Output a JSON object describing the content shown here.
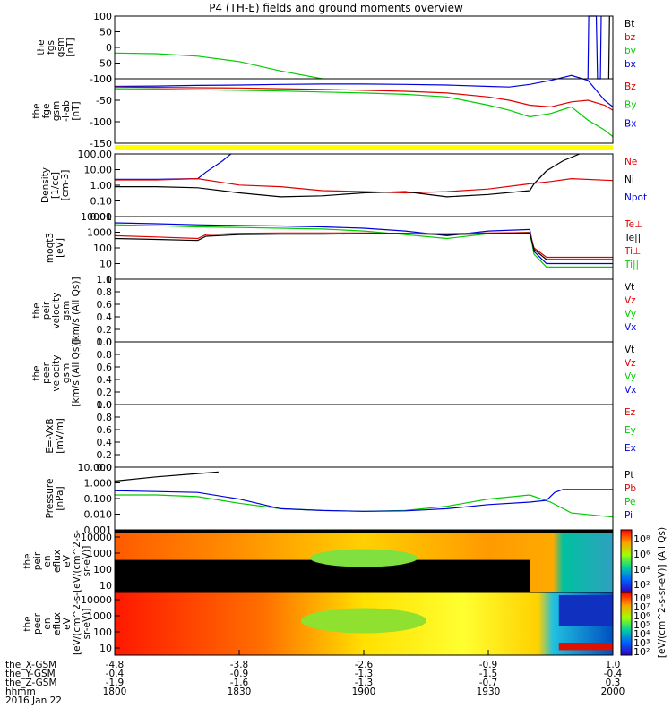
{
  "title": "P4 (TH-E) fields and ground moments overview",
  "colors": {
    "black": "#000000",
    "red": "#e00000",
    "green": "#00cc00",
    "blue": "#0000dd",
    "yellow": "#ffff00"
  },
  "chart_data": {
    "type": "line",
    "x": {
      "unit": "hhmm",
      "ticks": [
        "1800",
        "1830",
        "1900",
        "1930",
        "2000"
      ],
      "range_minutes": [
        0,
        120
      ]
    },
    "panels": [
      {
        "id": "fgs",
        "ylabel": [
          "the",
          "fgs",
          "gsm",
          "[nT]"
        ],
        "yticks": [
          "100",
          "50",
          "0",
          "-50",
          "-100"
        ],
        "ylim": [
          -100,
          100
        ],
        "legend": [
          {
            "text": "Bt",
            "color": "black"
          },
          {
            "text": "bz",
            "color": "red"
          },
          {
            "text": "by",
            "color": "green"
          },
          {
            "text": "bx",
            "color": "blue"
          }
        ],
        "series": [
          {
            "label": "by",
            "color": "green",
            "x": [
              0,
              10,
              20,
              30,
              40,
              50
            ],
            "y": [
              -18,
              -20,
              -28,
              -45,
              -75,
              -100
            ]
          },
          {
            "label": "bx",
            "color": "blue",
            "x": [
              114,
              114.2,
              116,
              116.3,
              117,
              117.2
            ],
            "y": [
              -100,
              100,
              100,
              -100,
              -100,
              100
            ]
          },
          {
            "label": "Bt",
            "color": "black",
            "x": [
              119,
              119.2
            ],
            "y": [
              -100,
              100
            ]
          }
        ]
      },
      {
        "id": "fge",
        "ylabel": [
          "the",
          "fge",
          "gsm",
          "-l-ab",
          "[nT]"
        ],
        "yticks": [
          "0",
          "-50",
          "-100",
          "-150"
        ],
        "ylim": [
          -170,
          25
        ],
        "legend": [
          {
            "text": "Bz",
            "color": "red"
          },
          {
            "text": "By",
            "color": "green"
          },
          {
            "text": "Bx",
            "color": "blue"
          }
        ],
        "series": [
          {
            "label": "Bx",
            "color": "blue",
            "x": [
              0,
              10,
              20,
              30,
              40,
              50,
              60,
              70,
              80,
              90,
              95,
              100,
              105,
              110,
              114,
              118,
              120
            ],
            "y": [
              2,
              3,
              5,
              6,
              8,
              9,
              9,
              8,
              6,
              2,
              0,
              8,
              20,
              35,
              20,
              -40,
              -60
            ]
          },
          {
            "label": "Bz",
            "color": "red",
            "x": [
              0,
              10,
              20,
              30,
              40,
              50,
              60,
              70,
              80,
              90,
              95,
              100,
              105,
              110,
              114,
              118,
              120
            ],
            "y": [
              0,
              -1,
              -2,
              -3,
              -5,
              -7,
              -10,
              -13,
              -18,
              -30,
              -40,
              -55,
              -60,
              -45,
              -40,
              -55,
              -70
            ]
          },
          {
            "label": "By",
            "color": "green",
            "x": [
              0,
              10,
              20,
              30,
              40,
              50,
              60,
              70,
              80,
              90,
              95,
              100,
              105,
              110,
              114,
              118,
              120
            ],
            "y": [
              -5,
              -6,
              -8,
              -10,
              -12,
              -15,
              -18,
              -22,
              -30,
              -55,
              -70,
              -90,
              -80,
              -60,
              -100,
              -130,
              -150
            ]
          }
        ]
      },
      {
        "id": "density",
        "ylabel": [
          "Density",
          "[1/cc]",
          "[cm-3]"
        ],
        "yticks": [
          "100.00",
          "10.00",
          "1.00",
          "0.10",
          "0.01"
        ],
        "ylim_log": [
          0.003,
          200
        ],
        "legend": [
          {
            "text": "Ne",
            "color": "red"
          },
          {
            "text": "Ni",
            "color": "black"
          },
          {
            "text": "Npot",
            "color": "blue"
          }
        ],
        "series": [
          {
            "label": "Npot",
            "color": "blue",
            "x": [
              0,
              10,
              20,
              22,
              26,
              28
            ],
            "y": [
              2.2,
              2.2,
              2.5,
              8,
              60,
              200
            ]
          },
          {
            "label": "Ne",
            "color": "red",
            "x": [
              0,
              10,
              20,
              30,
              40,
              50,
              60,
              70,
              80,
              90,
              100,
              105,
              110,
              120
            ],
            "y": [
              2,
              2,
              2.5,
              0.8,
              0.6,
              0.3,
              0.25,
              0.2,
              0.25,
              0.4,
              1,
              1.5,
              2.5,
              1.8
            ]
          },
          {
            "label": "Ni",
            "color": "black",
            "x": [
              0,
              10,
              20,
              30,
              40,
              50,
              60,
              70,
              80,
              90,
              100,
              101,
              104,
              108,
              112
            ],
            "y": [
              0.6,
              0.6,
              0.5,
              0.2,
              0.1,
              0.12,
              0.2,
              0.25,
              0.1,
              0.15,
              0.3,
              1,
              10,
              60,
              200
            ]
          }
        ]
      },
      {
        "id": "moments",
        "ylabel": [
          "moqt3",
          "[eV]"
        ],
        "yticks": [
          "10000",
          "1000",
          "100",
          "10",
          "1"
        ],
        "ylim_log": [
          1,
          10000
        ],
        "legend": [
          {
            "text": "Te⊥",
            "color": "red"
          },
          {
            "text": "Te||",
            "color": "black"
          },
          {
            "text": "Ti⊥",
            "color": "red"
          },
          {
            "text": "Ti||",
            "color": "green"
          }
        ],
        "series": [
          {
            "label": "Ti||",
            "color": "green",
            "x": [
              0,
              10,
              20,
              30,
              40,
              50,
              60,
              70,
              80,
              90,
              100,
              101,
              104,
              120
            ],
            "y": [
              3000,
              2600,
              2200,
              2000,
              1800,
              1600,
              1200,
              700,
              400,
              800,
              1000,
              40,
              6,
              6
            ]
          },
          {
            "label": "Ti⊥",
            "color": "blue",
            "x": [
              0,
              10,
              20,
              30,
              40,
              50,
              60,
              70,
              80,
              90,
              100,
              101,
              104,
              120
            ],
            "y": [
              4000,
              3500,
              3000,
              2700,
              2500,
              2200,
              1800,
              1200,
              600,
              1200,
              1500,
              60,
              10,
              10
            ]
          },
          {
            "label": "Te⊥",
            "color": "red",
            "x": [
              0,
              10,
              20,
              22,
              30,
              40,
              50,
              60,
              70,
              80,
              90,
              100,
              101,
              104,
              120
            ],
            "y": [
              600,
              500,
              400,
              700,
              850,
              900,
              900,
              900,
              850,
              800,
              900,
              950,
              100,
              25,
              25
            ]
          },
          {
            "label": "Te||",
            "color": "black",
            "x": [
              0,
              10,
              20,
              22,
              30,
              40,
              50,
              60,
              70,
              80,
              90,
              100,
              101,
              104,
              120
            ],
            "y": [
              400,
              350,
              300,
              550,
              700,
              750,
              750,
              800,
              800,
              700,
              800,
              850,
              80,
              18,
              18
            ]
          }
        ]
      },
      {
        "id": "peir_vel",
        "ylabel": [
          "the",
          "peir",
          "velocity",
          "gsm",
          "[km/s (All Qs)]"
        ],
        "yticks": [
          "1.0",
          "0.8",
          "0.6",
          "0.4",
          "0.2",
          "0.0"
        ],
        "ylim": [
          0,
          1
        ],
        "legend": [
          {
            "text": "Vt",
            "color": "black"
          },
          {
            "text": "Vz",
            "color": "red"
          },
          {
            "text": "Vy",
            "color": "green"
          },
          {
            "text": "Vx",
            "color": "blue"
          }
        ],
        "series": []
      },
      {
        "id": "peer_vel",
        "ylabel": [
          "the",
          "peer",
          "velocity",
          "gsm",
          "[km/s (All Qs)]"
        ],
        "yticks": [
          "1.0",
          "0.8",
          "0.6",
          "0.4",
          "0.2",
          "0.0"
        ],
        "ylim": [
          0,
          1
        ],
        "legend": [
          {
            "text": "Vt",
            "color": "black"
          },
          {
            "text": "Vz",
            "color": "red"
          },
          {
            "text": "Vy",
            "color": "green"
          },
          {
            "text": "Vx",
            "color": "blue"
          }
        ],
        "series": []
      },
      {
        "id": "efield",
        "ylabel": [
          "E=-VxB",
          "[mV/m]"
        ],
        "yticks": [
          "1.0",
          "0.8",
          "0.6",
          "0.4",
          "0.2",
          "0.0"
        ],
        "ylim": [
          0,
          1
        ],
        "legend": [
          {
            "text": "Ez",
            "color": "red"
          },
          {
            "text": "Ey",
            "color": "green"
          },
          {
            "text": "Ex",
            "color": "blue"
          }
        ],
        "series": []
      },
      {
        "id": "pressure",
        "ylabel": [
          "Pressure",
          "[nPa]"
        ],
        "yticks": [
          "10.000",
          "1.000",
          "0.100",
          "0.010",
          "0.001"
        ],
        "ylim_log": [
          0.0006,
          20
        ],
        "legend": [
          {
            "text": "Pt",
            "color": "black"
          },
          {
            "text": "Pb",
            "color": "red"
          },
          {
            "text": "Pe",
            "color": "green"
          },
          {
            "text": "Pi",
            "color": "blue"
          }
        ],
        "series": [
          {
            "label": "Pt",
            "color": "black",
            "x": [
              0,
              10,
              20,
              25
            ],
            "y": [
              2,
              4,
              7,
              9
            ]
          },
          {
            "label": "Pe",
            "color": "green",
            "x": [
              0,
              10,
              20,
              30,
              40,
              50,
              60,
              70,
              80,
              90,
              100,
              105,
              110,
              120
            ],
            "y": [
              0.2,
              0.2,
              0.15,
              0.05,
              0.02,
              0.015,
              0.013,
              0.015,
              0.03,
              0.1,
              0.2,
              0.06,
              0.01,
              0.005
            ]
          },
          {
            "label": "Pi",
            "color": "blue",
            "x": [
              0,
              10,
              20,
              30,
              40,
              50,
              60,
              70,
              80,
              90,
              100,
              104,
              106,
              108,
              120
            ],
            "y": [
              0.4,
              0.35,
              0.3,
              0.1,
              0.02,
              0.015,
              0.013,
              0.014,
              0.02,
              0.04,
              0.06,
              0.08,
              0.3,
              0.5,
              0.5
            ]
          }
        ]
      },
      {
        "id": "peir_spec",
        "type": "spectrogram",
        "ylabel": [
          "the",
          "peir",
          "en",
          "eflux",
          "eV",
          "[eV/(cm^2-s-",
          "sr-eV)]"
        ],
        "yticks": [
          "10000",
          "1000",
          "100",
          "10"
        ]
      },
      {
        "id": "peer_spec",
        "type": "spectrogram",
        "ylabel": [
          "the",
          "peer",
          "en",
          "eflux",
          "eV",
          "[eV/(cm^2-s-",
          "sr-eV)]"
        ],
        "yticks": [
          "10000",
          "1000",
          "100",
          "10"
        ]
      }
    ],
    "colorbar": {
      "label": "[eV/(cm^2-s-sr-eV)] (All Qs)",
      "upper": [
        "10⁸",
        "10⁶",
        "10⁴",
        "10²"
      ],
      "lower": [
        "10⁸",
        "10⁷",
        "10⁶",
        "10⁵",
        "10⁴",
        "10³",
        "10²"
      ]
    }
  },
  "footer": {
    "rows": [
      {
        "label": "the_X-GSM",
        "values": [
          "-4.8",
          "-3.8",
          "-2.6",
          "-0.9",
          "1.0"
        ]
      },
      {
        "label": "the_Y-GSM",
        "values": [
          "-0.4",
          "-0.9",
          "-1.3",
          "-1.5",
          "-0.4"
        ]
      },
      {
        "label": "the_Z-GSM",
        "values": [
          "-1.9",
          "-1.6",
          "-1.3",
          "-0.7",
          "0.3"
        ]
      },
      {
        "label": "hhmm",
        "values": [
          "1800",
          "1830",
          "1900",
          "1930",
          "2000"
        ]
      }
    ],
    "date": "2016 Jan 22"
  }
}
